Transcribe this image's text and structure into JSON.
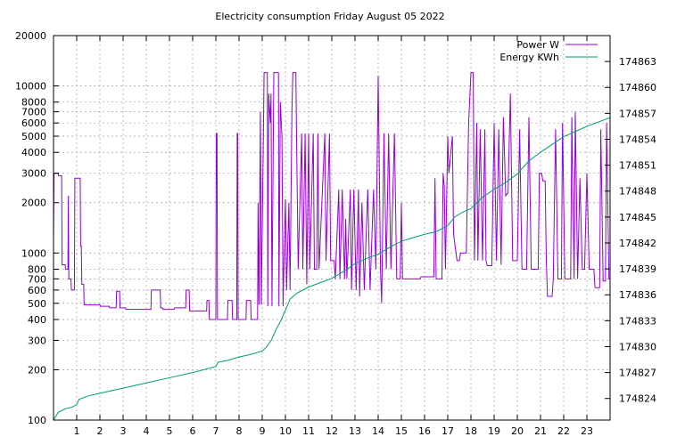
{
  "chart_data": {
    "type": "line",
    "title": "Electricity consumption Friday August 05 2022",
    "xlabel": "",
    "ylabel": "",
    "y2label": "",
    "xlim": [
      0,
      24
    ],
    "ylim": [
      100,
      20000
    ],
    "yscale": "log",
    "y2lim": [
      174821.5,
      174866
    ],
    "grid": true,
    "legend_position": "top-right",
    "x_ticks": [
      "1",
      "2",
      "3",
      "4",
      "5",
      "6",
      "7",
      "8",
      "9",
      "10",
      "11",
      "12",
      "13",
      "14",
      "15",
      "16",
      "17",
      "18",
      "19",
      "20",
      "21",
      "22",
      "23"
    ],
    "y_ticks": [
      "100",
      "200",
      "300",
      "400",
      "500",
      "600",
      "700",
      "800",
      "1000",
      "2000",
      "3000",
      "4000",
      "5000",
      "6000",
      "7000",
      "8000",
      "10000",
      "20000"
    ],
    "y2_ticks": [
      "174824",
      "174827",
      "174830",
      "174833",
      "174836",
      "174839",
      "174842",
      "174845",
      "174848",
      "174851",
      "174854",
      "174857",
      "174860",
      "174863"
    ],
    "series": [
      {
        "name": "Power W",
        "axis": "y",
        "color": "#9400d3",
        "points": [
          [
            0.0,
            1200
          ],
          [
            0.02,
            3000
          ],
          [
            0.2,
            3000
          ],
          [
            0.22,
            2900
          ],
          [
            0.35,
            2900
          ],
          [
            0.37,
            850
          ],
          [
            0.5,
            850
          ],
          [
            0.52,
            800
          ],
          [
            0.62,
            800
          ],
          [
            0.64,
            2200
          ],
          [
            0.66,
            700
          ],
          [
            0.75,
            700
          ],
          [
            0.77,
            600
          ],
          [
            0.9,
            600
          ],
          [
            0.92,
            2800
          ],
          [
            1.15,
            2800
          ],
          [
            1.17,
            1100
          ],
          [
            1.2,
            1100
          ],
          [
            1.22,
            650
          ],
          [
            1.3,
            650
          ],
          [
            1.32,
            490
          ],
          [
            2.0,
            490
          ],
          [
            2.02,
            480
          ],
          [
            2.4,
            480
          ],
          [
            2.42,
            470
          ],
          [
            2.7,
            470
          ],
          [
            2.72,
            590
          ],
          [
            2.85,
            590
          ],
          [
            2.87,
            470
          ],
          [
            3.1,
            470
          ],
          [
            3.12,
            460
          ],
          [
            4.2,
            460
          ],
          [
            4.22,
            600
          ],
          [
            4.6,
            600
          ],
          [
            4.62,
            470
          ],
          [
            4.7,
            470
          ],
          [
            4.72,
            460
          ],
          [
            5.2,
            460
          ],
          [
            5.22,
            470
          ],
          [
            5.7,
            470
          ],
          [
            5.72,
            600
          ],
          [
            5.85,
            600
          ],
          [
            5.87,
            450
          ],
          [
            6.6,
            450
          ],
          [
            6.62,
            520
          ],
          [
            6.7,
            520
          ],
          [
            6.72,
            400
          ],
          [
            7.0,
            400
          ],
          [
            7.02,
            5200
          ],
          [
            7.05,
            5200
          ],
          [
            7.07,
            400
          ],
          [
            7.5,
            400
          ],
          [
            7.52,
            520
          ],
          [
            7.7,
            520
          ],
          [
            7.72,
            400
          ],
          [
            7.9,
            400
          ],
          [
            7.92,
            5200
          ],
          [
            7.94,
            5200
          ],
          [
            7.96,
            400
          ],
          [
            8.3,
            400
          ],
          [
            8.32,
            520
          ],
          [
            8.5,
            520
          ],
          [
            8.52,
            400
          ],
          [
            8.8,
            400
          ],
          [
            8.82,
            2000
          ],
          [
            8.86,
            490
          ],
          [
            8.92,
            7000
          ],
          [
            8.96,
            490
          ],
          [
            9.05,
            5000
          ],
          [
            9.08,
            12000
          ],
          [
            9.22,
            12000
          ],
          [
            9.24,
            480
          ],
          [
            9.28,
            9000
          ],
          [
            9.35,
            6000
          ],
          [
            9.38,
            9000
          ],
          [
            9.42,
            480
          ],
          [
            9.5,
            12000
          ],
          [
            9.7,
            12000
          ],
          [
            9.72,
            480
          ],
          [
            9.78,
            8000
          ],
          [
            9.85,
            5000
          ],
          [
            9.9,
            480
          ],
          [
            9.95,
            1100
          ],
          [
            10.0,
            2100
          ],
          [
            10.05,
            600
          ],
          [
            10.15,
            2000
          ],
          [
            10.2,
            600
          ],
          [
            10.28,
            7000
          ],
          [
            10.32,
            12000
          ],
          [
            10.45,
            12000
          ],
          [
            10.48,
            5000
          ],
          [
            10.55,
            800
          ],
          [
            10.7,
            5200
          ],
          [
            10.75,
            800
          ],
          [
            10.85,
            5200
          ],
          [
            10.92,
            650
          ],
          [
            11.0,
            5200
          ],
          [
            11.05,
            800
          ],
          [
            11.2,
            5200
          ],
          [
            11.25,
            800
          ],
          [
            11.35,
            800
          ],
          [
            11.4,
            5200
          ],
          [
            11.45,
            800
          ],
          [
            11.7,
            5200
          ],
          [
            11.75,
            900
          ],
          [
            11.9,
            5200
          ],
          [
            11.95,
            900
          ],
          [
            12.1,
            900
          ],
          [
            12.15,
            700
          ],
          [
            12.3,
            2400
          ],
          [
            12.35,
            700
          ],
          [
            12.45,
            2400
          ],
          [
            12.55,
            700
          ],
          [
            12.6,
            1600
          ],
          [
            12.65,
            700
          ],
          [
            12.8,
            2400
          ],
          [
            12.85,
            600
          ],
          [
            12.95,
            2400
          ],
          [
            13.05,
            600
          ],
          [
            13.15,
            2400
          ],
          [
            13.2,
            550
          ],
          [
            13.3,
            2000
          ],
          [
            13.4,
            600
          ],
          [
            13.55,
            2400
          ],
          [
            13.65,
            600
          ],
          [
            13.8,
            2400
          ],
          [
            13.9,
            800
          ],
          [
            14.0,
            11500
          ],
          [
            14.1,
            800
          ],
          [
            14.15,
            500
          ],
          [
            14.25,
            5200
          ],
          [
            14.35,
            800
          ],
          [
            14.45,
            5200
          ],
          [
            14.55,
            800
          ],
          [
            14.7,
            5200
          ],
          [
            14.8,
            700
          ],
          [
            14.95,
            700
          ],
          [
            15.0,
            2000
          ],
          [
            15.05,
            700
          ],
          [
            15.8,
            700
          ],
          [
            15.85,
            720
          ],
          [
            16.4,
            720
          ],
          [
            16.45,
            2800
          ],
          [
            16.5,
            700
          ],
          [
            16.75,
            700
          ],
          [
            16.8,
            3000
          ],
          [
            16.85,
            2500
          ],
          [
            16.9,
            800
          ],
          [
            17.0,
            5000
          ],
          [
            17.05,
            3000
          ],
          [
            17.2,
            5000
          ],
          [
            17.25,
            1300
          ],
          [
            17.4,
            900
          ],
          [
            17.5,
            900
          ],
          [
            17.55,
            1000
          ],
          [
            17.8,
            1000
          ],
          [
            17.9,
            6000
          ],
          [
            18.0,
            12000
          ],
          [
            18.1,
            12000
          ],
          [
            18.15,
            900
          ],
          [
            18.25,
            6000
          ],
          [
            18.3,
            900
          ],
          [
            18.4,
            5500
          ],
          [
            18.5,
            900
          ],
          [
            18.6,
            5500
          ],
          [
            18.65,
            900
          ],
          [
            18.7,
            840
          ],
          [
            18.9,
            840
          ],
          [
            19.0,
            6000
          ],
          [
            19.1,
            900
          ],
          [
            19.2,
            5500
          ],
          [
            19.3,
            850
          ],
          [
            19.4,
            6500
          ],
          [
            19.5,
            2200
          ],
          [
            19.6,
            2300
          ],
          [
            19.7,
            9000
          ],
          [
            19.8,
            900
          ],
          [
            20.0,
            900
          ],
          [
            20.1,
            5500
          ],
          [
            20.2,
            800
          ],
          [
            20.4,
            800
          ],
          [
            20.5,
            6500
          ],
          [
            20.6,
            800
          ],
          [
            20.9,
            800
          ],
          [
            20.95,
            3000
          ],
          [
            21.05,
            3000
          ],
          [
            21.1,
            2700
          ],
          [
            21.2,
            2700
          ],
          [
            21.25,
            900
          ],
          [
            21.3,
            550
          ],
          [
            21.5,
            550
          ],
          [
            21.55,
            700
          ],
          [
            21.65,
            5500
          ],
          [
            21.75,
            700
          ],
          [
            21.9,
            700
          ],
          [
            21.95,
            6000
          ],
          [
            22.05,
            700
          ],
          [
            22.3,
            700
          ],
          [
            22.35,
            6500
          ],
          [
            22.45,
            700
          ],
          [
            22.5,
            7000
          ],
          [
            22.6,
            700
          ],
          [
            22.7,
            2800
          ],
          [
            22.8,
            800
          ],
          [
            22.9,
            800
          ],
          [
            23.0,
            3000
          ],
          [
            23.1,
            800
          ],
          [
            23.3,
            800
          ],
          [
            23.35,
            620
          ],
          [
            23.55,
            620
          ],
          [
            23.6,
            5500
          ],
          [
            23.7,
            680
          ],
          [
            23.8,
            680
          ],
          [
            23.85,
            6000
          ],
          [
            23.95,
            700
          ],
          [
            24.0,
            700
          ]
        ]
      },
      {
        "name": "Energy KWh",
        "axis": "y2",
        "color": "#009e73",
        "points": [
          [
            0.0,
            174821.5
          ],
          [
            0.2,
            174822.4
          ],
          [
            0.5,
            174822.8
          ],
          [
            0.8,
            174823.0
          ],
          [
            1.0,
            174823.3
          ],
          [
            1.1,
            174823.9
          ],
          [
            1.5,
            174824.3
          ],
          [
            2.0,
            174824.6
          ],
          [
            3.0,
            174825.2
          ],
          [
            4.0,
            174825.8
          ],
          [
            5.0,
            174826.4
          ],
          [
            6.0,
            174827.0
          ],
          [
            7.0,
            174827.7
          ],
          [
            7.1,
            174828.2
          ],
          [
            7.5,
            174828.4
          ],
          [
            8.0,
            174828.8
          ],
          [
            8.5,
            174829.1
          ],
          [
            9.0,
            174829.5
          ],
          [
            9.2,
            174830.0
          ],
          [
            9.4,
            174830.8
          ],
          [
            9.6,
            174832.0
          ],
          [
            9.8,
            174833.0
          ],
          [
            10.0,
            174834.2
          ],
          [
            10.2,
            174835.5
          ],
          [
            10.5,
            174836.2
          ],
          [
            11.0,
            174836.9
          ],
          [
            11.5,
            174837.4
          ],
          [
            12.0,
            174837.9
          ],
          [
            12.5,
            174838.7
          ],
          [
            13.0,
            174839.6
          ],
          [
            13.5,
            174840.2
          ],
          [
            14.0,
            174840.7
          ],
          [
            14.5,
            174841.5
          ],
          [
            15.0,
            174842.2
          ],
          [
            15.5,
            174842.6
          ],
          [
            16.0,
            174843.0
          ],
          [
            16.5,
            174843.3
          ],
          [
            17.0,
            174844.0
          ],
          [
            17.3,
            174845.0
          ],
          [
            17.6,
            174845.5
          ],
          [
            18.0,
            174846.0
          ],
          [
            18.5,
            174847.3
          ],
          [
            19.0,
            174848.2
          ],
          [
            19.5,
            174849.0
          ],
          [
            20.0,
            174850.0
          ],
          [
            20.5,
            174851.5
          ],
          [
            21.0,
            174852.5
          ],
          [
            21.5,
            174853.4
          ],
          [
            22.0,
            174854.3
          ],
          [
            22.5,
            174854.9
          ],
          [
            23.0,
            174855.5
          ],
          [
            23.5,
            174856.0
          ],
          [
            24.0,
            174856.5
          ]
        ]
      }
    ]
  }
}
